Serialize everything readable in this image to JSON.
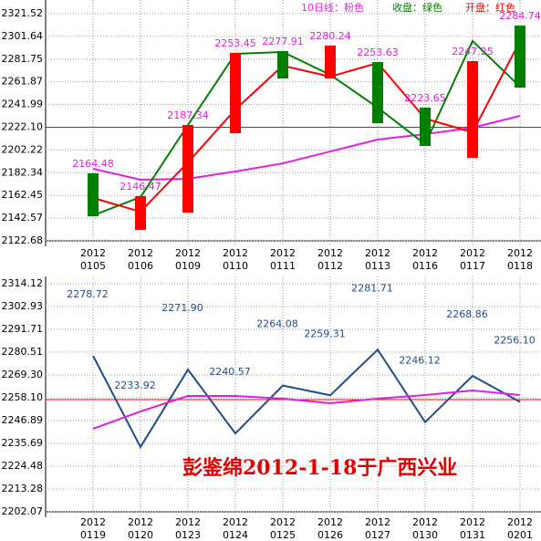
{
  "chart_data": [
    {
      "type": "candlestick",
      "categories": [
        [
          "2012",
          "0105"
        ],
        [
          "2012",
          "0106"
        ],
        [
          "2012",
          "0109"
        ],
        [
          "2012",
          "0110"
        ],
        [
          "2012",
          "0111"
        ],
        [
          "2012",
          "0112"
        ],
        [
          "2012",
          "0113"
        ],
        [
          "2012",
          "0116"
        ],
        [
          "2012",
          "0117"
        ],
        [
          "2012",
          "0118"
        ]
      ],
      "open": [
        2181.8,
        2132.3,
        2147.4,
        2216.9,
        2288.8,
        2264.8,
        2279.2,
        2239.3,
        2195.3,
        2311.1
      ],
      "close": [
        2144.2,
        2161.8,
        2224.1,
        2287.2,
        2264.8,
        2293.6,
        2225.7,
        2205.7,
        2280.0,
        2256.8
      ],
      "up_color": "#ff0000",
      "down_color": "#008000",
      "labels": [
        2164.48,
        2146.47,
        2187.34,
        2253.45,
        2277.91,
        2280.24,
        2253.63,
        2223.65,
        2247.25,
        2284.74
      ],
      "label_color": "#e020e0",
      "series": [
        {
          "name": "10日线：粉色",
          "color": "#e020e0",
          "values": [
            2185.8,
            2176.2,
            2177.0,
            2183.4,
            2190.5,
            2200.9,
            2211.3,
            2216.1,
            2221.7,
            2232.1
          ]
        },
        {
          "name": "收盘：绿色",
          "color": "#008000",
          "values": [
            2145.0,
            2161.0,
            2224.1,
            2286.4,
            2288.0,
            2268.0,
            2239.3,
            2207.3,
            2297.6,
            2257.6
          ]
        },
        {
          "name": "开盘：红色",
          "color": "#ff0000",
          "values": [
            2160.2,
            2148.2,
            2191.3,
            2237.7,
            2276.0,
            2266.4,
            2278.4,
            2229.7,
            2217.7,
            2297.6
          ]
        }
      ],
      "hline": 2222.1,
      "hline_color": "#ff0000",
      "ylim": [
        2122.68,
        2321.52
      ],
      "yticks": [
        2321.52,
        2301.64,
        2281.75,
        2261.87,
        2241.99,
        {
          "value": 2222.1,
          "label": "2222.10"
        },
        2202.22,
        2182.34,
        2162.45,
        2142.57,
        2122.68
      ],
      "grid": true
    },
    {
      "type": "line",
      "categories": [
        [
          "2012",
          "0119"
        ],
        [
          "2012",
          "0120"
        ],
        [
          "2012",
          "0123"
        ],
        [
          "2012",
          "0124"
        ],
        [
          "2012",
          "0125"
        ],
        [
          "2012",
          "0126"
        ],
        [
          "2012",
          "0127"
        ],
        [
          "2012",
          "0130"
        ],
        [
          "2012",
          "0131"
        ],
        [
          "2012",
          "0201"
        ]
      ],
      "series": [
        {
          "color": "#1f4e8c",
          "values": [
            2278.72,
            2233.92,
            2271.9,
            2240.57,
            2264.08,
            2259.31,
            2281.71,
            2246.12,
            2268.86,
            2256.1
          ],
          "value_labels": [
            "2278.72",
            "2233.92",
            "2271.90",
            "2240.57",
            "2264.08",
            "2259.31",
            "2281.71",
            "2246.12",
            "2268.86",
            "2256.10"
          ]
        },
        {
          "color": "#e020e0",
          "values": [
            2242.86,
            2251.37,
            2258.99,
            2258.99,
            2257.65,
            2255.41,
            2257.65,
            2259.44,
            2261.68,
            2259.44
          ]
        }
      ],
      "hline": 2257.2,
      "hline_color": "#ff0000",
      "annotation": "彭鉴绵2012-1-18于广西兴业",
      "annotation_color": "#e00000",
      "ylim": [
        2202.07,
        2314.12
      ],
      "yticks": [
        2314.12,
        2302.93,
        2291.71,
        2280.51,
        {
          "value": 2269.3,
          "label": "2269.30"
        },
        {
          "value": 2258.1,
          "label": "2258.10"
        },
        2246.89,
        2235.69,
        2224.48,
        2213.28,
        2202.07
      ],
      "grid": true
    }
  ]
}
